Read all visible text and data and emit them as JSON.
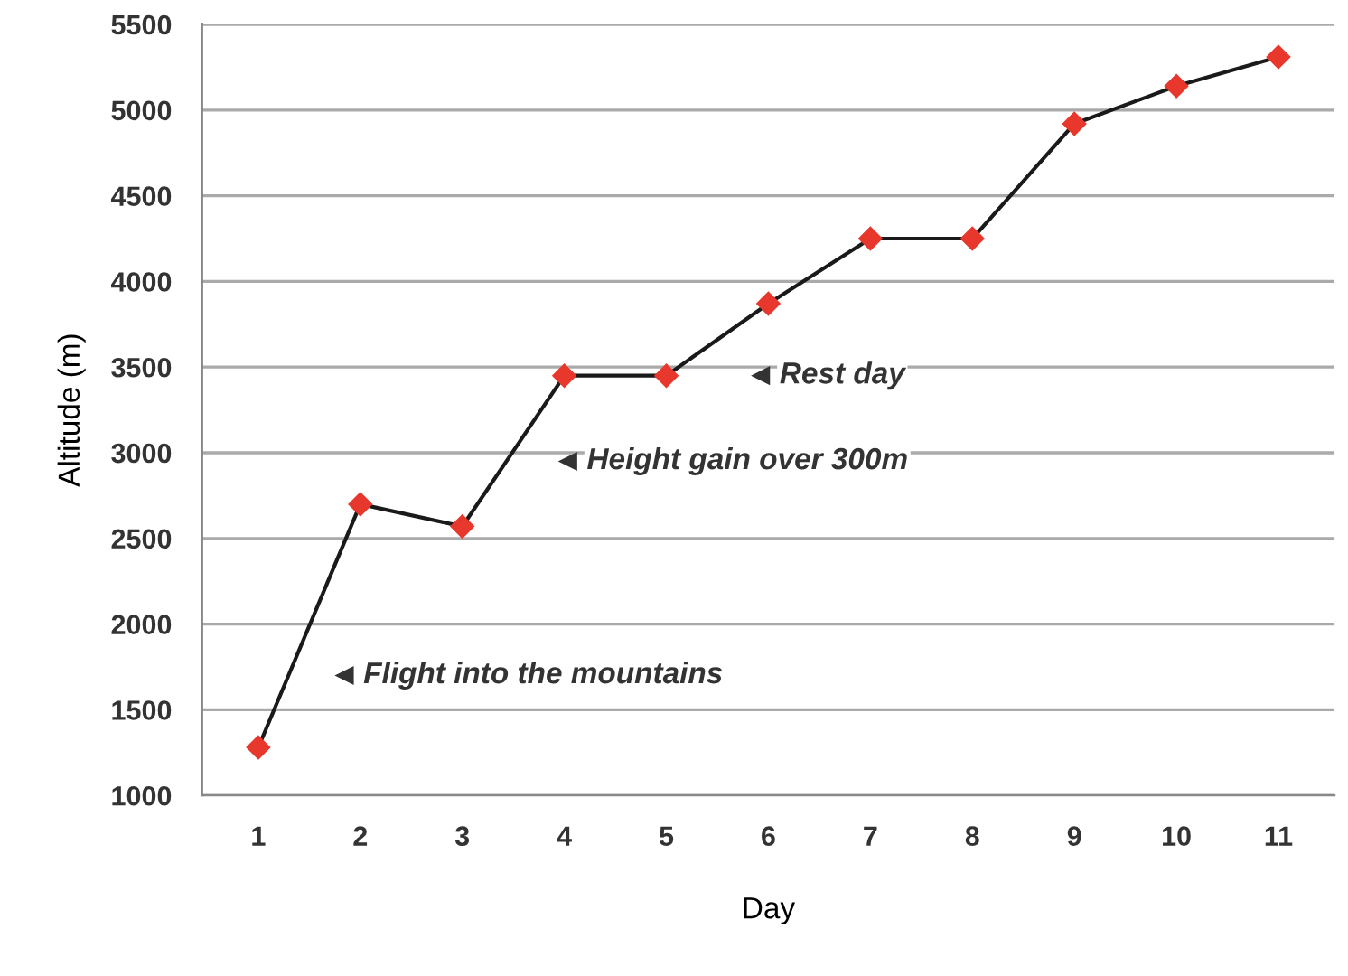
{
  "chart_data": {
    "type": "line",
    "xlabel": "Day",
    "ylabel": "Altitude (m)",
    "x": [
      1,
      2,
      3,
      4,
      5,
      6,
      7,
      8,
      9,
      10,
      11
    ],
    "series": [
      {
        "color": "#1a1a1a",
        "colors": [
          "#e8372c",
          "#e8372c",
          "#e8372c",
          "#e8372c",
          "#e8372c",
          "#e8372c",
          "#e8372c",
          "#e8372c",
          "#e8372c",
          "#e8372c",
          "#e8372c"
        ],
        "values": [
          1280,
          2700,
          2570,
          3450,
          3450,
          3870,
          4250,
          4250,
          4920,
          5140,
          5310
        ]
      }
    ],
    "xlim": [
      0.45,
      11.55
    ],
    "xticks": [
      1,
      2,
      3,
      4,
      5,
      6,
      7,
      8,
      9,
      10,
      11
    ],
    "ylim": [
      1000,
      5500
    ],
    "yticks": [
      1000,
      1500,
      2000,
      2500,
      3000,
      3500,
      4000,
      4500,
      5000,
      5500
    ],
    "grid": "y",
    "marker": "diamond",
    "line_style": "solid",
    "annotations": [
      {
        "text": "Rest day",
        "x": 5.93,
        "y": 3450
      },
      {
        "text": "Height gain over 300m",
        "x": 4.04,
        "y": 2950
      },
      {
        "text": "Flight into the mountains",
        "x": 1.85,
        "y": 1700
      }
    ]
  }
}
